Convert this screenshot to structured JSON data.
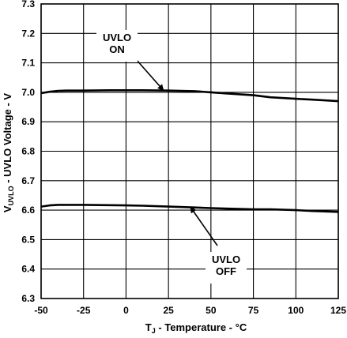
{
  "chart_data": {
    "type": "line",
    "title": "",
    "xlabel": {
      "main": "T",
      "sub": "J",
      "rest": " - Temperature - °C"
    },
    "ylabel": {
      "main": "V",
      "sub": "UVLO",
      "rest": " - UVLO Voltage - V"
    },
    "xlim": [
      -50,
      125
    ],
    "ylim": [
      6.3,
      7.3
    ],
    "x_ticks": [
      "-50",
      "-25",
      "0",
      "25",
      "50",
      "75",
      "100",
      "125"
    ],
    "y_ticks": [
      "6.3",
      "6.4",
      "6.5",
      "6.6",
      "6.7",
      "6.8",
      "6.9",
      "7.0",
      "7.1",
      "7.2",
      "7.3"
    ],
    "grid": true,
    "legend": "none",
    "series": [
      {
        "name": "UVLO ON",
        "x": [
          -50,
          -45,
          -40,
          -35,
          -25,
          -10,
          0,
          10,
          25,
          40,
          50,
          60,
          75,
          85,
          100,
          110,
          125
        ],
        "y": [
          6.997,
          7.002,
          7.005,
          7.006,
          7.006,
          7.007,
          7.007,
          7.007,
          7.006,
          7.004,
          7.0,
          6.996,
          6.99,
          6.983,
          6.978,
          6.975,
          6.97
        ]
      },
      {
        "name": "UVLO OFF",
        "x": [
          -50,
          -45,
          -40,
          -35,
          -25,
          -10,
          0,
          10,
          25,
          40,
          50,
          60,
          75,
          85,
          100,
          110,
          125
        ],
        "y": [
          6.612,
          6.616,
          6.618,
          6.618,
          6.618,
          6.617,
          6.616,
          6.615,
          6.612,
          6.609,
          6.607,
          6.605,
          6.603,
          6.603,
          6.6,
          6.597,
          6.594
        ]
      }
    ],
    "annotations": [
      {
        "label": "UVLO ON",
        "lines": [
          "UVLO",
          "ON"
        ],
        "arrow_to": {
          "x": 22,
          "y": 7.007
        }
      },
      {
        "label": "UVLO OFF",
        "lines": [
          "UVLO",
          "OFF"
        ],
        "arrow_to": {
          "x": 38,
          "y": 6.61
        }
      }
    ]
  }
}
